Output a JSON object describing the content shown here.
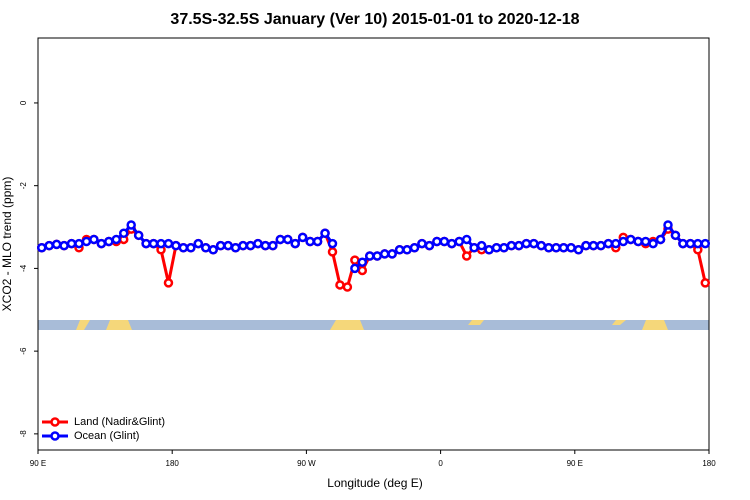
{
  "chart_data": {
    "type": "line",
    "title": "37.5S-32.5S January (Ver 10)   2015-01-01 to 2020-12-18",
    "x_label": "Longitude (deg E)",
    "y_label": "XCO2 - MLO trend (ppm)",
    "xlim": [
      90,
      540
    ],
    "xticks": [
      {
        "value": 90,
        "label": "90 E"
      },
      180,
      {
        "value": 270,
        "label": "90 W"
      },
      {
        "value": 360,
        "label": "0"
      },
      {
        "value": 450,
        "label": "90 E"
      },
      {
        "value": 540,
        "label": "180"
      }
    ],
    "ylim": [
      -8.39,
      1.57
    ],
    "yticks": [
      0,
      -2,
      -4,
      -6,
      -8
    ],
    "legend": "bottom-left",
    "x": [
      92.5,
      97.5,
      102.5,
      107.5,
      112.5,
      117.5,
      122.5,
      127.5,
      132.5,
      137.5,
      142.5,
      147.5,
      152.5,
      157.5,
      162.5,
      167.5,
      172.5,
      177.5,
      182.5,
      187.5,
      192.5,
      197.5,
      202.5,
      207.5,
      212.5,
      217.5,
      222.5,
      227.5,
      232.5,
      237.5,
      242.5,
      247.5,
      252.5,
      257.5,
      262.5,
      267.5,
      272.5,
      277.5,
      282.5,
      287.5,
      292.5,
      297.5,
      302.5,
      307.5,
      312.5,
      317.5,
      322.5,
      327.5,
      332.5,
      337.5,
      342.5,
      347.5,
      352.5,
      357.5,
      362.5,
      367.5,
      372.5,
      377.5,
      382.5,
      387.5,
      392.5,
      397.5,
      402.5,
      407.5,
      412.5,
      417.5,
      422.5,
      427.5,
      432.5,
      437.5,
      442.5,
      447.5,
      452.5,
      457.5,
      462.5,
      467.5,
      472.5,
      477.5,
      482.5,
      487.5,
      492.5,
      497.5,
      502.5,
      507.5,
      512.5,
      517.5,
      522.5,
      527.5,
      532.5,
      537.5
    ],
    "series": [
      {
        "name": "Land (Nadir&Glint)",
        "color": "#ff0000",
        "values": [
          -3.5,
          -3.45,
          -3.42,
          -3.45,
          -3.4,
          -3.5,
          -3.3,
          -3.3,
          -3.4,
          -3.35,
          -3.35,
          -3.3,
          -3.05,
          -3.2,
          -3.4,
          -3.4,
          -3.55,
          -4.35,
          -3.45,
          -3.5,
          -3.5,
          -3.4,
          -3.5,
          -3.55,
          -3.45,
          -3.45,
          -3.5,
          -3.45,
          -3.45,
          -3.4,
          -3.45,
          -3.45,
          -3.3,
          -3.3,
          -3.4,
          -3.25,
          -3.35,
          -3.35,
          -3.15,
          -3.6,
          -4.4,
          -4.45,
          -3.8,
          -4.05,
          -3.7,
          -3.7,
          -3.65,
          -3.65,
          -3.55,
          -3.55,
          -3.5,
          -3.4,
          -3.45,
          -3.35,
          -3.35,
          -3.4,
          -3.35,
          -3.7,
          -3.5,
          -3.55,
          -3.55,
          -3.5,
          -3.5,
          -3.45,
          -3.45,
          -3.4,
          -3.4,
          -3.45,
          -3.5,
          -3.5,
          -3.5,
          -3.5,
          -3.55,
          -3.45,
          -3.45,
          -3.45,
          -3.4,
          -3.5,
          -3.25,
          -3.3,
          -3.35,
          -3.4,
          -3.35,
          -3.3,
          -3.05,
          -3.2,
          -3.4,
          -3.4,
          -3.55,
          -4.35
        ]
      },
      {
        "name": "Ocean (Glint)",
        "color": "#0000ff",
        "values": [
          -3.5,
          -3.45,
          -3.42,
          -3.45,
          -3.4,
          -3.4,
          -3.35,
          -3.3,
          -3.4,
          -3.35,
          -3.3,
          -3.15,
          -2.95,
          -3.2,
          -3.4,
          -3.4,
          -3.4,
          -3.4,
          -3.45,
          -3.5,
          -3.5,
          -3.4,
          -3.5,
          -3.55,
          -3.45,
          -3.45,
          -3.5,
          -3.45,
          -3.45,
          -3.4,
          -3.45,
          -3.45,
          -3.3,
          -3.3,
          -3.4,
          -3.25,
          -3.35,
          -3.35,
          -3.15,
          -3.4,
          null,
          null,
          -4.0,
          -3.85,
          -3.7,
          -3.7,
          -3.65,
          -3.65,
          -3.55,
          -3.55,
          -3.5,
          -3.4,
          -3.45,
          -3.35,
          -3.35,
          -3.4,
          -3.35,
          -3.3,
          -3.5,
          -3.45,
          -3.55,
          -3.5,
          -3.5,
          -3.45,
          -3.45,
          -3.4,
          -3.4,
          -3.45,
          -3.5,
          -3.5,
          -3.5,
          -3.5,
          -3.55,
          -3.45,
          -3.45,
          -3.45,
          -3.4,
          -3.4,
          -3.35,
          -3.3,
          -3.35,
          -3.35,
          -3.4,
          -3.3,
          -2.95,
          -3.2,
          -3.4,
          -3.4,
          -3.4,
          -3.4
        ]
      }
    ]
  }
}
